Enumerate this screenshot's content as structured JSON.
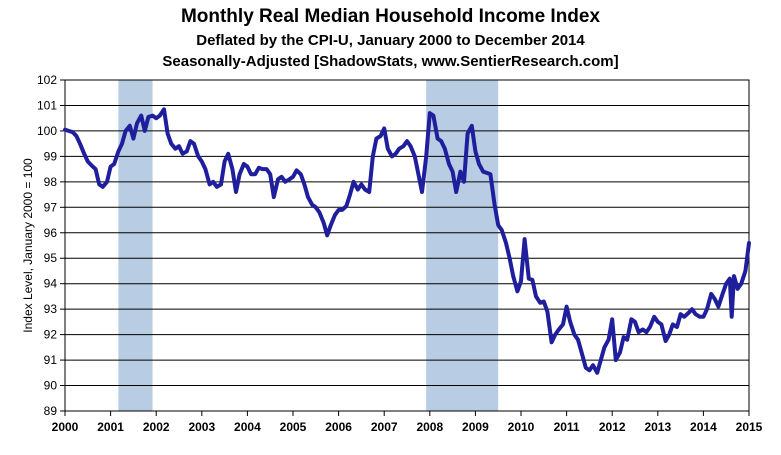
{
  "chart_data": {
    "type": "line",
    "title": "Monthly Real Median Household Income Index",
    "subtitle_1": "Deflated by the CPI-U, January 2000 to December 2014",
    "subtitle_2": "Seasonally-Adjusted [ShadowStats, www.SentierResearch.com]",
    "xlabel": "",
    "ylabel": "Index Level, January 2000 = 100",
    "ylim": [
      89,
      102
    ],
    "xlim": [
      2000,
      2015
    ],
    "y_ticks": [
      "89",
      "90",
      "91",
      "92",
      "93",
      "94",
      "95",
      "96",
      "97",
      "98",
      "99",
      "100",
      "101",
      "102"
    ],
    "x_ticks": [
      "2000",
      "2001",
      "2002",
      "2003",
      "2004",
      "2005",
      "2006",
      "2007",
      "2008",
      "2009",
      "2010",
      "2011",
      "2012",
      "2013",
      "2014",
      "2015"
    ],
    "grid": true,
    "line_color": "#1f1f9e",
    "recession_color": "#b8cce4",
    "recessions": [
      [
        2001.17,
        2001.92
      ],
      [
        2007.92,
        2009.5
      ]
    ],
    "series": [
      {
        "points": [
          [
            2000.0,
            100.05
          ],
          [
            2000.08,
            100.0
          ],
          [
            2000.17,
            99.95
          ],
          [
            2000.25,
            99.8
          ],
          [
            2000.33,
            99.5
          ],
          [
            2000.42,
            99.1
          ],
          [
            2000.5,
            98.8
          ],
          [
            2000.58,
            98.65
          ],
          [
            2000.67,
            98.5
          ],
          [
            2000.75,
            97.9
          ],
          [
            2000.83,
            97.8
          ],
          [
            2000.92,
            98.0
          ],
          [
            2001.0,
            98.6
          ],
          [
            2001.08,
            98.7
          ],
          [
            2001.17,
            99.2
          ],
          [
            2001.25,
            99.5
          ],
          [
            2001.33,
            100.0
          ],
          [
            2001.42,
            100.2
          ],
          [
            2001.5,
            99.7
          ],
          [
            2001.58,
            100.3
          ],
          [
            2001.67,
            100.6
          ],
          [
            2001.75,
            100.0
          ],
          [
            2001.83,
            100.55
          ],
          [
            2001.92,
            100.6
          ],
          [
            2002.0,
            100.5
          ],
          [
            2002.08,
            100.6
          ],
          [
            2002.17,
            100.85
          ],
          [
            2002.25,
            99.9
          ],
          [
            2002.33,
            99.5
          ],
          [
            2002.42,
            99.3
          ],
          [
            2002.5,
            99.4
          ],
          [
            2002.58,
            99.1
          ],
          [
            2002.67,
            99.2
          ],
          [
            2002.75,
            99.6
          ],
          [
            2002.83,
            99.5
          ],
          [
            2002.92,
            99.0
          ],
          [
            2003.0,
            98.8
          ],
          [
            2003.08,
            98.5
          ],
          [
            2003.17,
            97.9
          ],
          [
            2003.25,
            98.0
          ],
          [
            2003.33,
            97.8
          ],
          [
            2003.42,
            97.9
          ],
          [
            2003.5,
            98.8
          ],
          [
            2003.58,
            99.1
          ],
          [
            2003.67,
            98.5
          ],
          [
            2003.75,
            97.6
          ],
          [
            2003.83,
            98.3
          ],
          [
            2003.92,
            98.7
          ],
          [
            2004.0,
            98.6
          ],
          [
            2004.08,
            98.3
          ],
          [
            2004.17,
            98.3
          ],
          [
            2004.25,
            98.55
          ],
          [
            2004.33,
            98.5
          ],
          [
            2004.42,
            98.5
          ],
          [
            2004.5,
            98.3
          ],
          [
            2004.58,
            97.4
          ],
          [
            2004.67,
            98.1
          ],
          [
            2004.75,
            98.2
          ],
          [
            2004.83,
            98.0
          ],
          [
            2004.92,
            98.1
          ],
          [
            2005.0,
            98.2
          ],
          [
            2005.08,
            98.45
          ],
          [
            2005.17,
            98.3
          ],
          [
            2005.25,
            97.9
          ],
          [
            2005.33,
            97.4
          ],
          [
            2005.42,
            97.1
          ],
          [
            2005.5,
            97.0
          ],
          [
            2005.58,
            96.8
          ],
          [
            2005.67,
            96.4
          ],
          [
            2005.75,
            95.9
          ],
          [
            2005.83,
            96.3
          ],
          [
            2005.92,
            96.7
          ],
          [
            2006.0,
            96.9
          ],
          [
            2006.08,
            96.9
          ],
          [
            2006.17,
            97.05
          ],
          [
            2006.25,
            97.5
          ],
          [
            2006.33,
            98.0
          ],
          [
            2006.42,
            97.7
          ],
          [
            2006.5,
            97.9
          ],
          [
            2006.58,
            97.7
          ],
          [
            2006.67,
            97.6
          ],
          [
            2006.75,
            99.0
          ],
          [
            2006.83,
            99.7
          ],
          [
            2006.92,
            99.8
          ],
          [
            2007.0,
            100.1
          ],
          [
            2007.08,
            99.3
          ],
          [
            2007.17,
            99.0
          ],
          [
            2007.25,
            99.1
          ],
          [
            2007.33,
            99.3
          ],
          [
            2007.42,
            99.4
          ],
          [
            2007.5,
            99.6
          ],
          [
            2007.58,
            99.4
          ],
          [
            2007.67,
            99.0
          ],
          [
            2007.75,
            98.3
          ],
          [
            2007.83,
            97.6
          ],
          [
            2007.92,
            99.0
          ],
          [
            2008.0,
            100.7
          ],
          [
            2008.08,
            100.6
          ],
          [
            2008.17,
            99.7
          ],
          [
            2008.25,
            99.6
          ],
          [
            2008.33,
            99.3
          ],
          [
            2008.42,
            98.7
          ],
          [
            2008.5,
            98.4
          ],
          [
            2008.58,
            97.6
          ],
          [
            2008.67,
            98.4
          ],
          [
            2008.75,
            98.0
          ],
          [
            2008.83,
            99.9
          ],
          [
            2008.92,
            100.2
          ],
          [
            2009.0,
            99.2
          ],
          [
            2009.08,
            98.7
          ],
          [
            2009.17,
            98.4
          ],
          [
            2009.25,
            98.35
          ],
          [
            2009.33,
            98.3
          ],
          [
            2009.42,
            97.1
          ],
          [
            2009.5,
            96.3
          ],
          [
            2009.58,
            96.1
          ],
          [
            2009.67,
            95.6
          ],
          [
            2009.75,
            95.0
          ],
          [
            2009.83,
            94.3
          ],
          [
            2009.92,
            93.7
          ],
          [
            2010.0,
            94.1
          ],
          [
            2010.08,
            95.75
          ],
          [
            2010.17,
            94.2
          ],
          [
            2010.25,
            94.15
          ],
          [
            2010.33,
            93.5
          ],
          [
            2010.42,
            93.25
          ],
          [
            2010.5,
            93.3
          ],
          [
            2010.58,
            92.9
          ],
          [
            2010.67,
            91.7
          ],
          [
            2010.75,
            92.0
          ],
          [
            2010.83,
            92.2
          ],
          [
            2010.92,
            92.4
          ],
          [
            2011.0,
            93.1
          ],
          [
            2011.08,
            92.5
          ],
          [
            2011.17,
            92.0
          ],
          [
            2011.25,
            91.8
          ],
          [
            2011.33,
            91.3
          ],
          [
            2011.42,
            90.7
          ],
          [
            2011.5,
            90.6
          ],
          [
            2011.58,
            90.8
          ],
          [
            2011.67,
            90.5
          ],
          [
            2011.75,
            91.0
          ],
          [
            2011.83,
            91.5
          ],
          [
            2011.92,
            91.8
          ],
          [
            2012.0,
            92.6
          ],
          [
            2012.08,
            91.0
          ],
          [
            2012.17,
            91.3
          ],
          [
            2012.25,
            91.9
          ],
          [
            2012.33,
            91.8
          ],
          [
            2012.42,
            92.6
          ],
          [
            2012.5,
            92.5
          ],
          [
            2012.58,
            92.1
          ],
          [
            2012.67,
            92.2
          ],
          [
            2012.75,
            92.1
          ],
          [
            2012.83,
            92.3
          ],
          [
            2012.92,
            92.7
          ],
          [
            2013.0,
            92.5
          ],
          [
            2013.08,
            92.4
          ],
          [
            2013.17,
            91.75
          ],
          [
            2013.25,
            92.0
          ],
          [
            2013.33,
            92.4
          ],
          [
            2013.42,
            92.3
          ],
          [
            2013.5,
            92.8
          ],
          [
            2013.58,
            92.7
          ],
          [
            2013.67,
            92.85
          ],
          [
            2013.75,
            93.0
          ],
          [
            2013.83,
            92.8
          ],
          [
            2013.92,
            92.7
          ],
          [
            2014.0,
            92.7
          ],
          [
            2014.08,
            93.0
          ],
          [
            2014.17,
            93.6
          ],
          [
            2014.25,
            93.4
          ],
          [
            2014.33,
            93.1
          ],
          [
            2014.42,
            93.6
          ],
          [
            2014.5,
            94.0
          ],
          [
            2014.58,
            94.2
          ],
          [
            2014.62,
            92.7
          ],
          [
            2014.67,
            94.3
          ],
          [
            2014.75,
            93.8
          ],
          [
            2014.83,
            94.0
          ],
          [
            2014.92,
            94.5
          ],
          [
            2015.0,
            95.6
          ]
        ]
      }
    ]
  }
}
